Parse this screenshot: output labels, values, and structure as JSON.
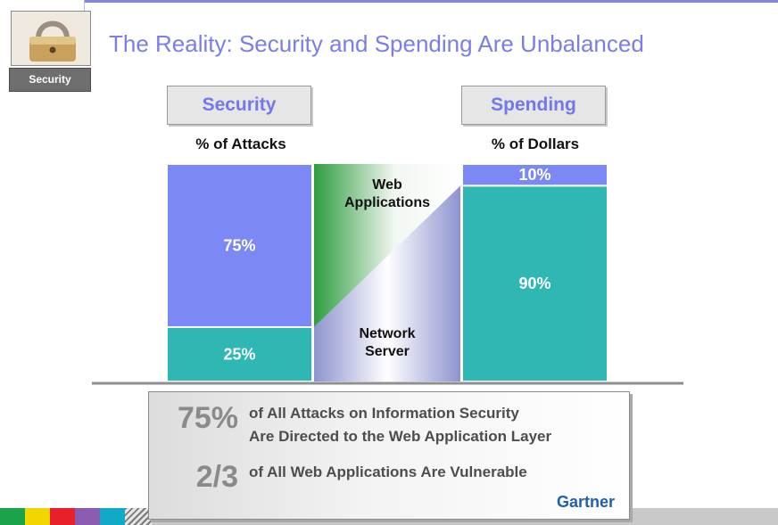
{
  "slide": {
    "title": "The Reality: Security and Spending Are Unbalanced",
    "badge_label": "Security",
    "logo_icon": "padlock-icon"
  },
  "chart_data": {
    "type": "bar",
    "layout": "stacked-100-percent",
    "categories": [
      "Security",
      "Spending"
    ],
    "category_subtitles": [
      "% of Attacks",
      "% of Dollars"
    ],
    "series": [
      {
        "name": "Web Applications",
        "values": [
          75,
          10
        ],
        "labels": [
          "75%",
          "10%"
        ],
        "color": "#7b88f6"
      },
      {
        "name": "Network Server",
        "values": [
          25,
          90
        ],
        "labels": [
          "25%",
          "90%"
        ],
        "color": "#2fb7b4"
      }
    ],
    "connector_labels": [
      {
        "name": "Web Applications",
        "lines": [
          "Web",
          "Applications"
        ]
      },
      {
        "name": "Network Server",
        "lines": [
          "Network",
          "Server"
        ]
      }
    ],
    "ylim": [
      0,
      100
    ],
    "grid": false,
    "legend": "none"
  },
  "stats": [
    {
      "value": "75%",
      "lines": [
        "of All Attacks on Information Security",
        "Are Directed to the Web Application Layer"
      ]
    },
    {
      "value": "2/3",
      "lines": [
        "of All Web Applications Are Vulnerable"
      ]
    }
  ],
  "source": "Gartner",
  "footer_colors": [
    "#1aa34a",
    "#f2d600",
    "#e8202a",
    "#8a5bb0",
    "#10a9c8"
  ]
}
